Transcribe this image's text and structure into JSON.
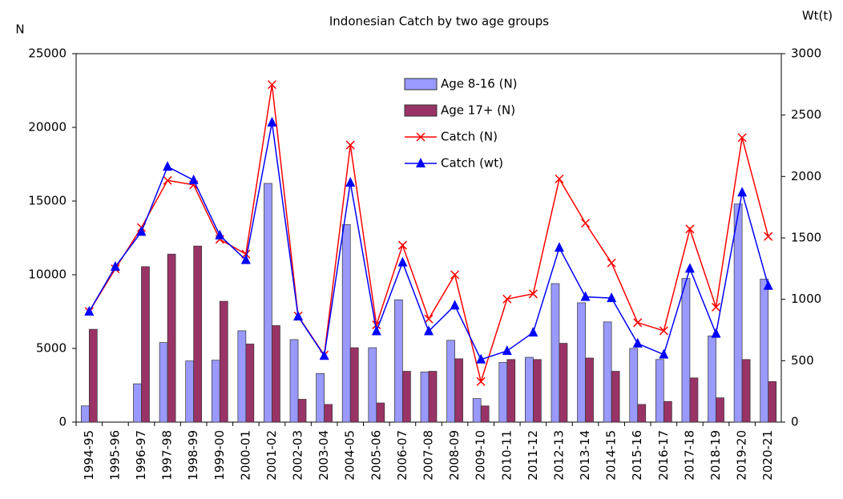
{
  "chart_data": {
    "type": "bar-line",
    "title": "Indonesian Catch by two age groups",
    "y_label": "N",
    "y2_label": "Wt(t)",
    "categories": [
      "1994-95",
      "1995-96",
      "1996-97",
      "1997-98",
      "1998-99",
      "1999-00",
      "2000-01",
      "2001-02",
      "2002-03",
      "2003-04",
      "2004-05",
      "2005-06",
      "2006-07",
      "2007-08",
      "2008-09",
      "2009-10",
      "2010-11",
      "2011-12",
      "2012-13",
      "2013-14",
      "2014-15",
      "2015-16",
      "2016-17",
      "2017-18",
      "2018-19",
      "2019-20",
      "2020-21"
    ],
    "series": [
      {
        "name": "Age 8-16 (N)",
        "type": "bar",
        "color": "#9999ff",
        "values": [
          1100,
          null,
          2600,
          5400,
          4150,
          4200,
          6200,
          16200,
          5600,
          3300,
          13400,
          5050,
          8300,
          3400,
          5550,
          1600,
          4050,
          4400,
          9400,
          8100,
          6800,
          5000,
          4250,
          9750,
          5850,
          14800,
          9700
        ]
      },
      {
        "name": "Age 17+ (N)",
        "type": "bar",
        "color": "#993366",
        "values": [
          6300,
          null,
          10550,
          11400,
          11950,
          8200,
          5300,
          6550,
          1550,
          1200,
          5050,
          1300,
          3450,
          3450,
          4300,
          1100,
          4250,
          4250,
          5350,
          4350,
          3450,
          1200,
          1400,
          3000,
          1650,
          4250,
          2750
        ]
      },
      {
        "name": "Catch (N)",
        "type": "line",
        "marker": "x",
        "color": "#ff0000",
        "values": [
          7500,
          10400,
          13200,
          16400,
          16100,
          12400,
          11400,
          22900,
          7200,
          4550,
          18800,
          6600,
          12000,
          7000,
          10000,
          2750,
          8350,
          8700,
          16500,
          13500,
          10800,
          6750,
          6200,
          13100,
          7800,
          19300,
          12600
        ]
      },
      {
        "name": "Catch (wt)",
        "type": "line",
        "marker": "triangle",
        "axis": "y2",
        "color": "#0000ff",
        "values": [
          900,
          1265,
          1550,
          2080,
          1970,
          1520,
          1320,
          2440,
          860,
          540,
          1950,
          740,
          1300,
          740,
          950,
          510,
          580,
          730,
          1420,
          1020,
          1010,
          640,
          550,
          1250,
          720,
          1870,
          1110
        ]
      }
    ],
    "ylim": [
      0,
      25000
    ],
    "yticks": [
      0,
      5000,
      10000,
      15000,
      20000,
      25000
    ],
    "y2lim": [
      0,
      3000
    ],
    "y2ticks": [
      0,
      500,
      1000,
      1500,
      2000,
      2500,
      3000
    ],
    "legend": "top-center"
  }
}
